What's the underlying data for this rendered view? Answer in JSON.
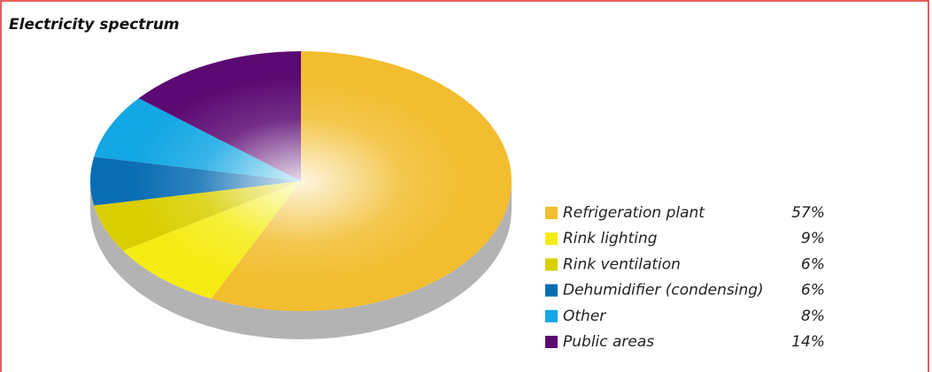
{
  "chart_data": {
    "type": "pie",
    "title": "Electricity spectrum",
    "categories": [
      "Refrigeration plant",
      "Rink lighting",
      "Rink ventilation",
      "Dehumidifier (condensing)",
      "Other",
      "Public areas"
    ],
    "values": [
      57,
      9,
      6,
      6,
      8,
      14
    ],
    "value_labels": [
      "57%",
      "9%",
      "6%",
      "6%",
      "8%",
      "14%"
    ],
    "colors": [
      "#f2bd2e",
      "#f5ec14",
      "#d9cf00",
      "#0a6db3",
      "#13a7e4",
      "#5c0a73"
    ]
  }
}
